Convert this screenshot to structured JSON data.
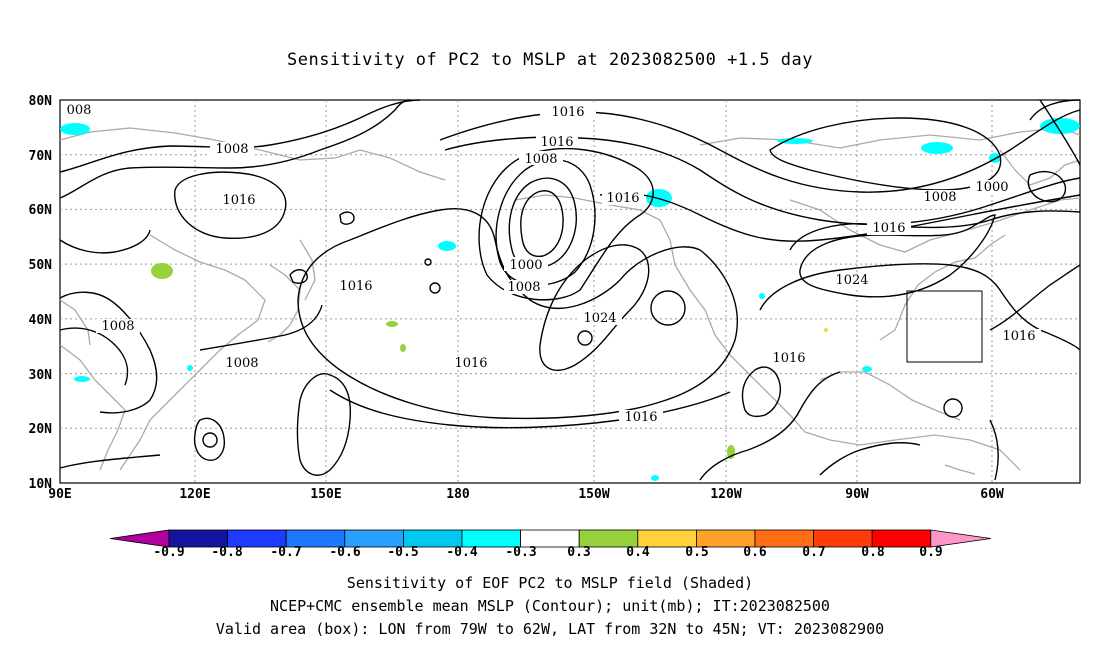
{
  "title": "Sensitivity of PC2 to MSLP at 2023082500 +1.5 day",
  "map": {
    "lat_ticks": [
      "80N",
      "70N",
      "60N",
      "50N",
      "40N",
      "30N",
      "20N",
      "10N"
    ],
    "lon_ticks": [
      "90E",
      "120E",
      "150E",
      "180",
      "150W",
      "120W",
      "90W",
      "60W"
    ],
    "extent": {
      "lon_min": 90,
      "lon_max": 325,
      "lat_min": 10,
      "lat_max": 80
    },
    "grid": "dotted",
    "valid_box": {
      "lon_from": "79W",
      "lon_to": "62W",
      "lat_from": "32N",
      "lat_to": "45N"
    },
    "contour_labels": [
      "1016",
      "1016",
      "1008",
      "1000",
      "1008",
      "1016",
      "1024",
      "1016",
      "1016",
      "1016",
      "1016",
      "1008",
      "008",
      "1008",
      "1008",
      "1016",
      "1008",
      "1000",
      "1016",
      "1024",
      "1016"
    ]
  },
  "colorbar": {
    "labels": [
      "-0.9",
      "-0.8",
      "-0.7",
      "-0.6",
      "-0.5",
      "-0.4",
      "-0.3",
      "0.3",
      "0.4",
      "0.5",
      "0.6",
      "0.7",
      "0.8",
      "0.9"
    ],
    "colors": [
      "#b000a0",
      "#1414a0",
      "#1e3cff",
      "#1e78ff",
      "#28a0ff",
      "#00c8f0",
      "#00ffff",
      "#ffffff",
      "#96d23c",
      "#ffd23c",
      "#ffa028",
      "#ff6e14",
      "#ff3c0a",
      "#ff0000",
      "#ff96c8"
    ]
  },
  "captions": {
    "line1": "Sensitivity of EOF PC2 to MSLP field (Shaded)",
    "line2": "NCEP+CMC ensemble mean MSLP (Contour); unit(mb); IT:2023082500",
    "line3": "Valid area (box): LON from 79W to 62W, LAT from 32N to 45N; VT: 2023082900"
  }
}
